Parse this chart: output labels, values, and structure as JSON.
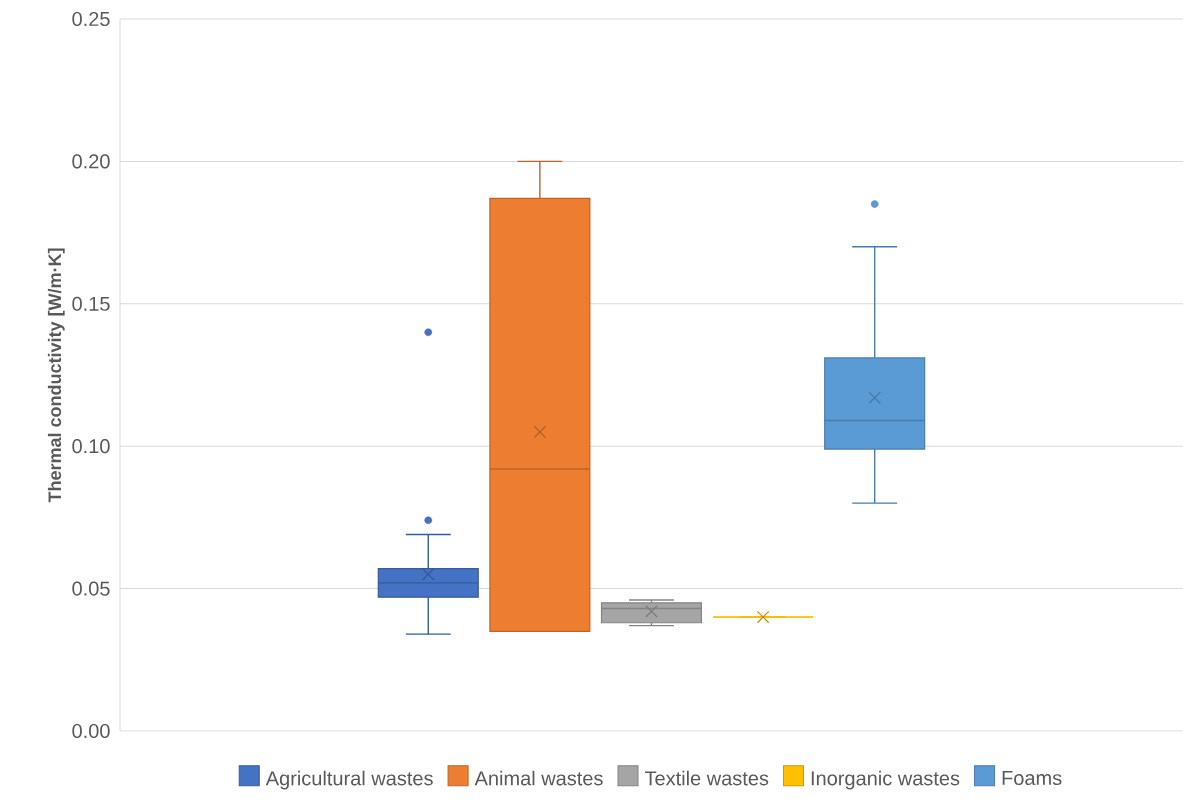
{
  "chart_data": {
    "type": "box",
    "ylabel": "Thermal conductivity [W/m·K]",
    "categories": [
      null
    ],
    "series": [
      {
        "name": "Agricultural wastes",
        "color": "#4472c4",
        "boxes": [
          {
            "low": 0.034,
            "q1": 0.047,
            "median": 0.052,
            "q3": 0.057,
            "high": 0.069,
            "mean": 0.055,
            "outliers": [
              0.074,
              0.14
            ]
          }
        ]
      },
      {
        "name": "Animal wastes",
        "color": "#ed7d31",
        "boxes": [
          {
            "low": 0.035,
            "q1": 0.035,
            "median": 0.092,
            "q3": 0.187,
            "high": 0.2,
            "mean": 0.105
          }
        ]
      },
      {
        "name": "Textile wastes",
        "color": "#a5a5a5",
        "boxes": [
          {
            "low": 0.037,
            "q1": 0.038,
            "median": 0.043,
            "q3": 0.045,
            "high": 0.046,
            "mean": 0.042
          }
        ]
      },
      {
        "name": "Inorganic wastes",
        "color": "#ffc000",
        "boxes": [
          {
            "low": 0.04,
            "q1": 0.04,
            "median": 0.04,
            "q3": 0.04,
            "high": 0.04,
            "mean": 0.04
          }
        ]
      },
      {
        "name": "Foams",
        "color": "#5b9bd5",
        "boxes": [
          {
            "low": 0.08,
            "q1": 0.099,
            "median": 0.109,
            "q3": 0.131,
            "high": 0.17,
            "mean": 0.117,
            "outliers": [
              0.185
            ]
          }
        ]
      }
    ],
    "ylim": [
      0,
      0.25
    ],
    "yticks": [
      {
        "value": 0,
        "label": "0.00"
      },
      {
        "value": 0.05,
        "label": "0.05"
      },
      {
        "value": 0.1,
        "label": "0.10"
      },
      {
        "value": 0.15,
        "label": "0.15"
      },
      {
        "value": 0.2,
        "label": "0.20"
      },
      {
        "value": 0.25,
        "label": "0.25"
      }
    ],
    "grid": "y",
    "legend": "bottom"
  }
}
